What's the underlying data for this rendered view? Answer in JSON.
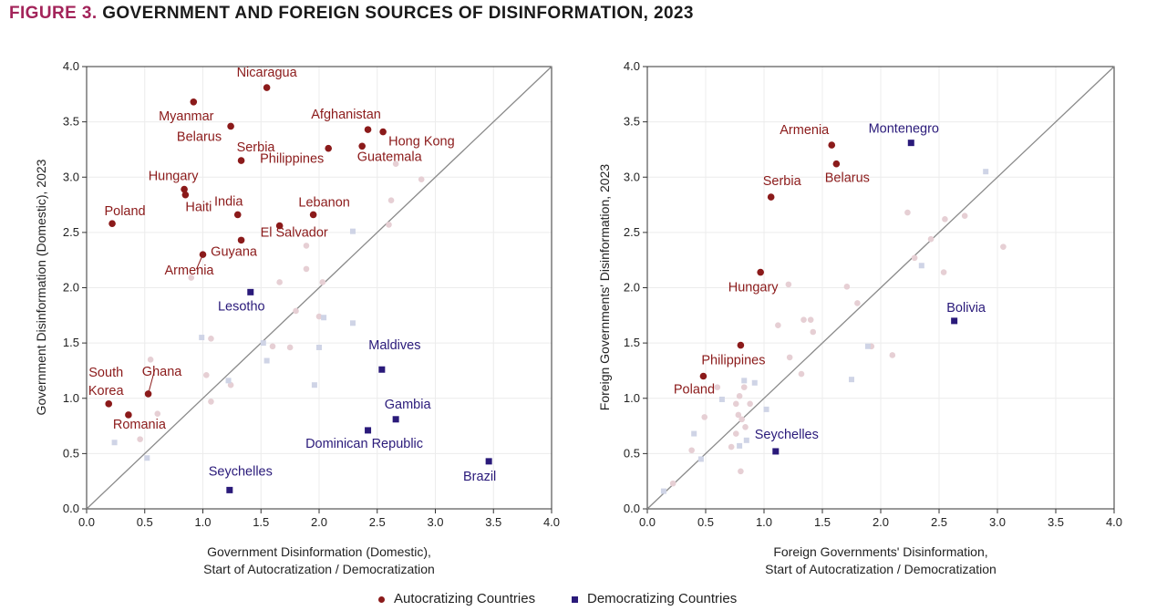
{
  "figure": {
    "number": "FIGURE 3.",
    "title": "GOVERNMENT AND FOREIGN SOURCES OF DISINFORMATION, 2023"
  },
  "colors": {
    "autocratizing": "#8b1a1a",
    "democratizing": "#2a1a7a",
    "background_points": "#e6cfd4",
    "background_squares": "#cfd4e6",
    "diagonal": "#8a8a8a",
    "axis": "#333333"
  },
  "legend": {
    "autocratizing_label": "Autocratizing Countries",
    "democratizing_label": "Democratizing Countries"
  },
  "chart_data": [
    {
      "type": "scatter",
      "id": "left",
      "title": "",
      "xlabel": [
        "Government Disinformation (Domestic),",
        "Start of Autocratization / Democratization"
      ],
      "ylabel": "Government Disinformation (Domestic), 2023",
      "xlim": [
        0,
        4
      ],
      "ylim": [
        0,
        4
      ],
      "xticks": [
        "0.0",
        "0.5",
        "1.0",
        "1.5",
        "2.0",
        "2.5",
        "3.0",
        "3.5",
        "4.0"
      ],
      "yticks": [
        "0.0",
        "0.5",
        "1.0",
        "1.5",
        "2.0",
        "2.5",
        "3.0",
        "3.5",
        "4.0"
      ],
      "diagonal": true,
      "autocratizing": [
        {
          "name": "Nicaragua",
          "x": 1.55,
          "y": 3.81
        },
        {
          "name": "Myanmar",
          "x": 0.92,
          "y": 3.68
        },
        {
          "name": "Belarus",
          "x": 1.24,
          "y": 3.46
        },
        {
          "name": "Afghanistan",
          "x": 2.42,
          "y": 3.43
        },
        {
          "name": "Hong Kong",
          "x": 2.55,
          "y": 3.41
        },
        {
          "name": "Serbia",
          "x": 1.33,
          "y": 3.15
        },
        {
          "name": "Philippines",
          "x": 2.08,
          "y": 3.26
        },
        {
          "name": "Guatemala",
          "x": 2.37,
          "y": 3.28
        },
        {
          "name": "Hungary",
          "x": 0.84,
          "y": 2.89
        },
        {
          "name": "Haiti",
          "x": 0.85,
          "y": 2.84
        },
        {
          "name": "India",
          "x": 1.3,
          "y": 2.66
        },
        {
          "name": "Lebanon",
          "x": 1.95,
          "y": 2.66
        },
        {
          "name": "Poland",
          "x": 0.22,
          "y": 2.58
        },
        {
          "name": "El Salvador",
          "x": 1.66,
          "y": 2.56
        },
        {
          "name": "Guyana",
          "x": 1.33,
          "y": 2.43
        },
        {
          "name": "Armenia",
          "x": 1.0,
          "y": 2.3
        },
        {
          "name": "South Korea",
          "x": 0.19,
          "y": 0.95
        },
        {
          "name": "Ghana",
          "x": 0.53,
          "y": 1.04
        },
        {
          "name": "Romania",
          "x": 0.36,
          "y": 0.85
        }
      ],
      "democratizing": [
        {
          "name": "Lesotho",
          "x": 1.41,
          "y": 1.96
        },
        {
          "name": "Maldives",
          "x": 2.54,
          "y": 1.26
        },
        {
          "name": "Gambia",
          "x": 2.66,
          "y": 0.81
        },
        {
          "name": "Dominican Republic",
          "x": 2.42,
          "y": 0.71
        },
        {
          "name": "Brazil",
          "x": 3.46,
          "y": 0.43
        },
        {
          "name": "Seychelles",
          "x": 1.23,
          "y": 0.17
        }
      ],
      "background_circles": [
        {
          "x": 2.88,
          "y": 2.98
        },
        {
          "x": 2.66,
          "y": 3.12
        },
        {
          "x": 2.62,
          "y": 2.79
        },
        {
          "x": 2.6,
          "y": 2.57
        },
        {
          "x": 1.89,
          "y": 2.38
        },
        {
          "x": 1.89,
          "y": 2.17
        },
        {
          "x": 2.03,
          "y": 2.05
        },
        {
          "x": 1.66,
          "y": 2.05
        },
        {
          "x": 0.9,
          "y": 2.09
        },
        {
          "x": 2.0,
          "y": 1.74
        },
        {
          "x": 1.8,
          "y": 1.79
        },
        {
          "x": 1.6,
          "y": 1.47
        },
        {
          "x": 1.75,
          "y": 1.46
        },
        {
          "x": 1.07,
          "y": 1.54
        },
        {
          "x": 0.55,
          "y": 1.35
        },
        {
          "x": 1.03,
          "y": 1.21
        },
        {
          "x": 1.24,
          "y": 1.12
        },
        {
          "x": 1.07,
          "y": 0.97
        },
        {
          "x": 0.61,
          "y": 0.86
        },
        {
          "x": 0.46,
          "y": 0.63
        }
      ],
      "background_squares": [
        {
          "x": 2.29,
          "y": 2.51
        },
        {
          "x": 2.04,
          "y": 1.73
        },
        {
          "x": 2.29,
          "y": 1.68
        },
        {
          "x": 2.0,
          "y": 1.46
        },
        {
          "x": 1.52,
          "y": 1.5
        },
        {
          "x": 1.55,
          "y": 1.34
        },
        {
          "x": 0.99,
          "y": 1.55
        },
        {
          "x": 1.22,
          "y": 1.16
        },
        {
          "x": 1.96,
          "y": 1.12
        },
        {
          "x": 0.24,
          "y": 0.6
        },
        {
          "x": 0.52,
          "y": 0.46
        }
      ]
    },
    {
      "type": "scatter",
      "id": "right",
      "title": "",
      "xlabel": [
        "Foreign Governments' Disinformation,",
        "Start of Autocratization / Democratization"
      ],
      "ylabel": "Foreign Governments' Disinformation, 2023",
      "xlim": [
        0,
        4
      ],
      "ylim": [
        0,
        4
      ],
      "xticks": [
        "0.0",
        "0.5",
        "1.0",
        "1.5",
        "2.0",
        "2.5",
        "3.0",
        "3.5",
        "4.0"
      ],
      "yticks": [
        "0.0",
        "0.5",
        "1.0",
        "1.5",
        "2.0",
        "2.5",
        "3.0",
        "3.5",
        "4.0"
      ],
      "diagonal": true,
      "autocratizing": [
        {
          "name": "Armenia",
          "x": 1.58,
          "y": 3.29
        },
        {
          "name": "Belarus",
          "x": 1.62,
          "y": 3.12
        },
        {
          "name": "Serbia",
          "x": 1.06,
          "y": 2.82
        },
        {
          "name": "Hungary",
          "x": 0.97,
          "y": 2.14
        },
        {
          "name": "Philippines",
          "x": 0.8,
          "y": 1.48
        },
        {
          "name": "Poland",
          "x": 0.48,
          "y": 1.2
        }
      ],
      "democratizing": [
        {
          "name": "Montenegro",
          "x": 2.26,
          "y": 3.31
        },
        {
          "name": "Bolivia",
          "x": 2.63,
          "y": 1.7
        },
        {
          "name": "Seychelles",
          "x": 1.1,
          "y": 0.52
        }
      ],
      "background_circles": [
        {
          "x": 2.23,
          "y": 2.68
        },
        {
          "x": 2.55,
          "y": 2.62
        },
        {
          "x": 2.72,
          "y": 2.65
        },
        {
          "x": 3.05,
          "y": 2.37
        },
        {
          "x": 2.43,
          "y": 2.44
        },
        {
          "x": 2.29,
          "y": 2.27
        },
        {
          "x": 2.54,
          "y": 2.14
        },
        {
          "x": 1.21,
          "y": 2.03
        },
        {
          "x": 1.71,
          "y": 2.01
        },
        {
          "x": 1.8,
          "y": 1.86
        },
        {
          "x": 1.12,
          "y": 1.66
        },
        {
          "x": 1.34,
          "y": 1.71
        },
        {
          "x": 1.4,
          "y": 1.71
        },
        {
          "x": 1.42,
          "y": 1.6
        },
        {
          "x": 1.22,
          "y": 1.37
        },
        {
          "x": 1.32,
          "y": 1.22
        },
        {
          "x": 1.92,
          "y": 1.47
        },
        {
          "x": 2.1,
          "y": 1.39
        },
        {
          "x": 0.6,
          "y": 1.1
        },
        {
          "x": 0.79,
          "y": 1.02
        },
        {
          "x": 0.83,
          "y": 1.1
        },
        {
          "x": 0.76,
          "y": 0.95
        },
        {
          "x": 0.88,
          "y": 0.95
        },
        {
          "x": 0.49,
          "y": 0.83
        },
        {
          "x": 0.78,
          "y": 0.85
        },
        {
          "x": 0.81,
          "y": 0.81
        },
        {
          "x": 0.84,
          "y": 0.74
        },
        {
          "x": 0.76,
          "y": 0.68
        },
        {
          "x": 0.38,
          "y": 0.53
        },
        {
          "x": 0.72,
          "y": 0.56
        },
        {
          "x": 0.8,
          "y": 0.34
        },
        {
          "x": 0.22,
          "y": 0.23
        }
      ],
      "background_squares": [
        {
          "x": 2.9,
          "y": 3.05
        },
        {
          "x": 2.35,
          "y": 2.2
        },
        {
          "x": 1.89,
          "y": 1.47
        },
        {
          "x": 1.75,
          "y": 1.17
        },
        {
          "x": 0.83,
          "y": 1.16
        },
        {
          "x": 0.92,
          "y": 1.14
        },
        {
          "x": 0.64,
          "y": 0.99
        },
        {
          "x": 1.02,
          "y": 0.9
        },
        {
          "x": 0.4,
          "y": 0.68
        },
        {
          "x": 0.85,
          "y": 0.62
        },
        {
          "x": 0.79,
          "y": 0.57
        },
        {
          "x": 0.46,
          "y": 0.45
        },
        {
          "x": 0.14,
          "y": 0.16
        }
      ]
    }
  ]
}
